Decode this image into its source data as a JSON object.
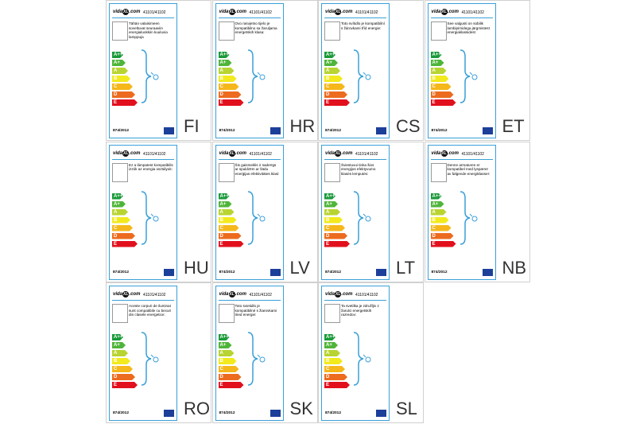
{
  "brand": [
    "vida",
    "XL",
    ".com"
  ],
  "code": "41101/41102",
  "regulation": "874/2012",
  "classes": [
    "A++",
    "A+",
    "A",
    "B",
    "C",
    "D",
    "E"
  ],
  "cells": [
    {
      "lang": "FI",
      "text": "Tähän valaisimeen soveltuvat seuraaviin energialuokkiin kuuluvia lamppuja"
    },
    {
      "lang": "HR",
      "text": "Ovo rasvjetno tijelo je kompatibilno sa žaruljama energetskih klasa:"
    },
    {
      "lang": "CS",
      "text": "Toto svítidlo je kompatibilní s žárovkami tříd energie:"
    },
    {
      "lang": "ET",
      "text": "See valgusti on sobilik lambipirnidega järgmistest energiaklassidest"
    },
    {
      "lang": "HU",
      "text": "Ez a lámpatest kompatibilis izzók az energia osztályok:"
    },
    {
      "lang": "LV",
      "text": "Šis gaismeklis ir saderīgs ar spuldzēm ar šādu enerģijas efektivitātes klasi:"
    },
    {
      "lang": "LT",
      "text": "Šviestuvui tinka šios energijos efektyvumo klasės lemputės:"
    },
    {
      "lang": "NB",
      "text": "Denne armaturen er kompatibel med lyspærer av følgende energiklasser:"
    },
    {
      "lang": "RO",
      "text": "Aceste corpuri de iluminat sunt compatibile cu becuri din clasele energetice:"
    },
    {
      "lang": "SK",
      "text": "Toto svietidlo je kompatibilné s žiarovkami tried energie:"
    },
    {
      "lang": "SL",
      "text": "Ta svetilka je združljiv z žarulci energetskih razredov:"
    }
  ]
}
